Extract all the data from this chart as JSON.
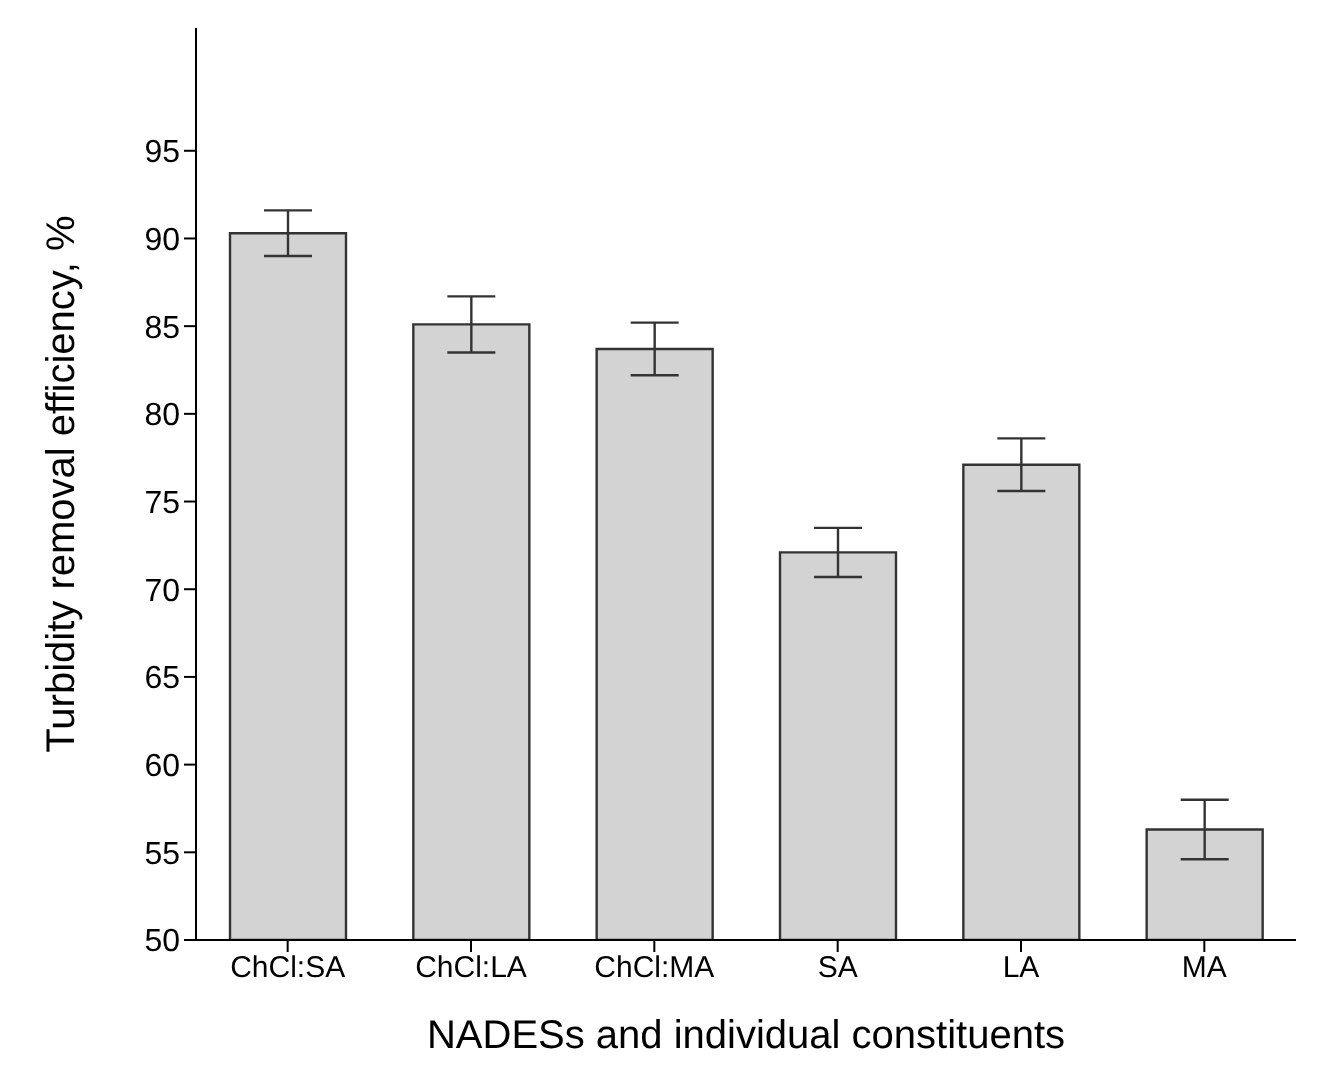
{
  "chart_data": {
    "type": "bar",
    "xlabel": "NADESs and individual constituents",
    "ylabel": "Turbidity removal efficiency, %",
    "categories": [
      "ChCl:SA",
      "ChCl:LA",
      "ChCl:MA",
      "SA",
      "LA",
      "MA"
    ],
    "values": [
      90.3,
      85.1,
      83.7,
      72.1,
      77.1,
      56.3
    ],
    "errors": [
      1.3,
      1.6,
      1.5,
      1.4,
      1.5,
      1.7
    ],
    "color": "#d3d3d3",
    "ylim": [
      50,
      102
    ],
    "yticks": [
      50,
      55,
      60,
      65,
      70,
      75,
      80,
      85,
      90,
      95
    ],
    "grid": false
  }
}
